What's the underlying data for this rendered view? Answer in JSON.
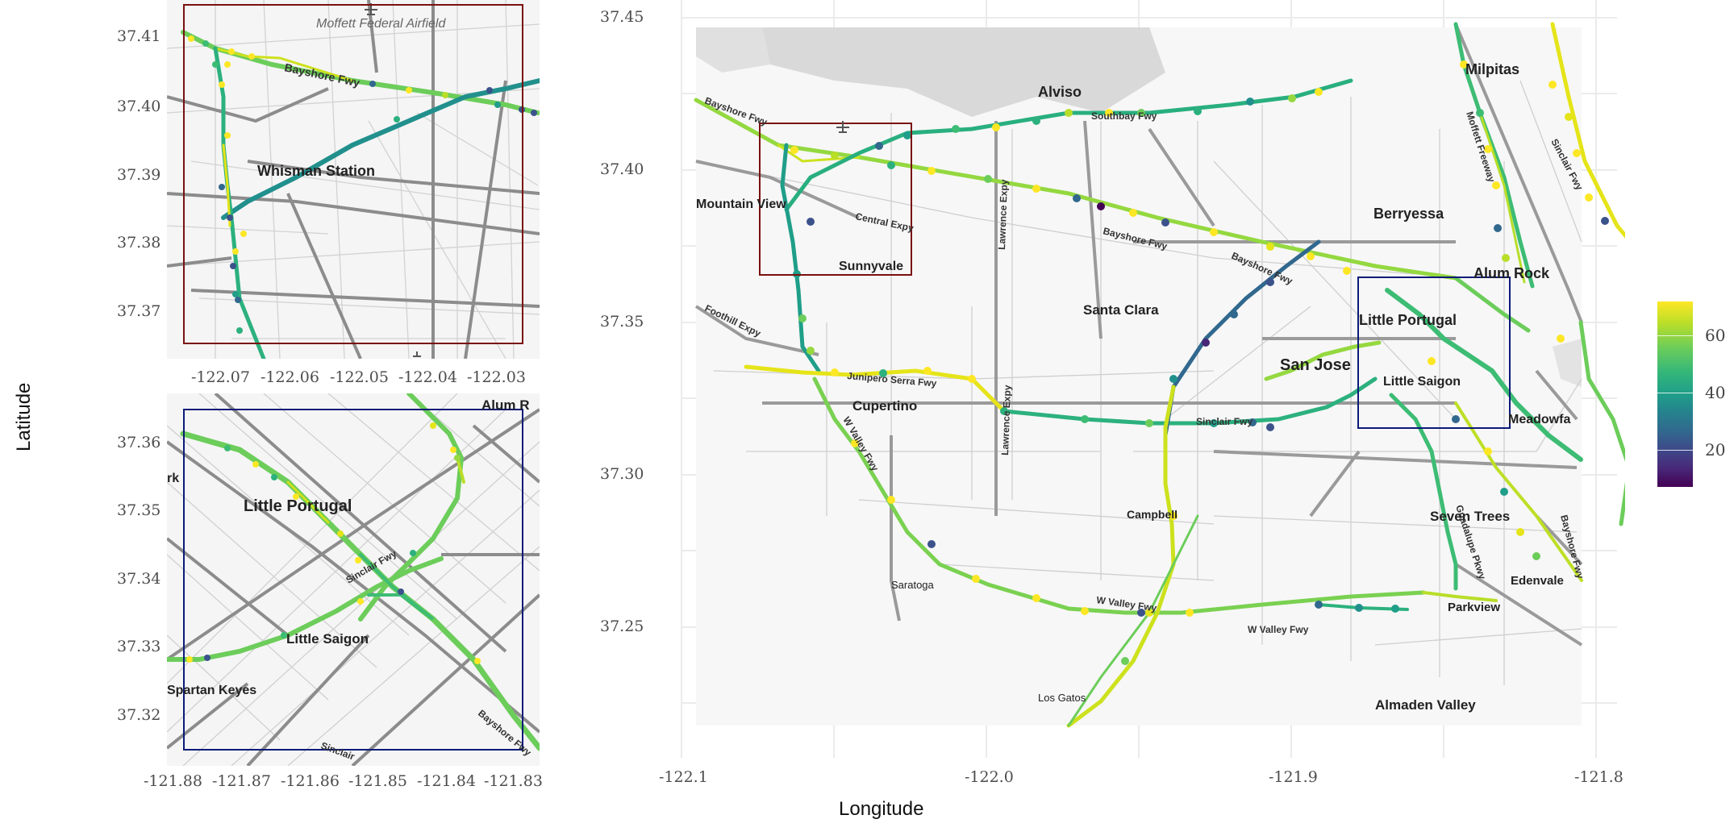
{
  "colors": {
    "inset1_box": "#7a1010",
    "inset2_box": "#0c1a78",
    "legend_low": "#440154",
    "legend_mid": "#21908d",
    "legend_high": "#fde725"
  },
  "axes": {
    "xlabel": "Longitude",
    "ylabel": "Latitude"
  },
  "main": {
    "x_ticks": [
      "-122.1",
      "-122.0",
      "-121.9",
      "-121.8"
    ],
    "y_ticks": [
      "37.45",
      "37.40",
      "37.35",
      "37.30",
      "37.25"
    ],
    "xlim": [
      -122.1,
      -121.8
    ],
    "ylim": [
      37.22,
      37.45
    ],
    "places": [
      "Milpitas",
      "Alviso",
      "Berryessa",
      "Alum Rock",
      "Little Portugal",
      "San Jose",
      "Little Saigon",
      "Meadowfa",
      "Santa Clara",
      "Mountain View",
      "Sunnyvale",
      "Cupertino",
      "Campbell",
      "Saratoga",
      "Los Gatos",
      "Seven Trees",
      "Edenvale",
      "Parkview",
      "Almaden Valley"
    ],
    "roads": [
      "Bayshore Fwy",
      "Southbay Fwy",
      "Moffett Freeway",
      "Sinclair Fwy",
      "Central Expy",
      "Lawrence Expy",
      "Bayshore Fwy",
      "Bayshore Fwy",
      "Foothill Expy",
      "Junipero Serra Fwy",
      "W Valley Fwy",
      "Lawrence Expy",
      "Sinclair Fwy",
      "Guadalupe Pkwy",
      "W Valley Fwy",
      "W Valley Fwy",
      "Bayshore Fwy"
    ]
  },
  "inset1": {
    "x_ticks": [
      "-122.07",
      "-122.06",
      "-122.05",
      "-122.04",
      "-122.03"
    ],
    "y_ticks": [
      "37.41",
      "37.40",
      "37.39",
      "37.38",
      "37.37"
    ],
    "xlim": [
      -122.072,
      -122.026
    ],
    "ylim": [
      37.364,
      37.416
    ],
    "places": [
      "Moffett Federal Airfield",
      "Whisman Station"
    ],
    "roads": [
      "Bayshore Fwy"
    ]
  },
  "inset2": {
    "x_ticks": [
      "-121.88",
      "-121.87",
      "-121.86",
      "-121.85",
      "-121.84",
      "-121.83"
    ],
    "y_ticks": [
      "37.36",
      "37.35",
      "37.34",
      "37.33",
      "37.32"
    ],
    "xlim": [
      -121.88,
      -121.826
    ],
    "ylim": [
      37.314,
      37.366
    ],
    "places": [
      "Alum R",
      "rk",
      "Little Portugal",
      "Little Saigon",
      "Spartan Keyes"
    ],
    "roads": [
      "Sinclair Fwy",
      "Bayshore Fwy",
      "Sinclair"
    ]
  },
  "legend": {
    "ticks": [
      "60",
      "40",
      "20"
    ],
    "range": [
      7,
      72
    ]
  }
}
